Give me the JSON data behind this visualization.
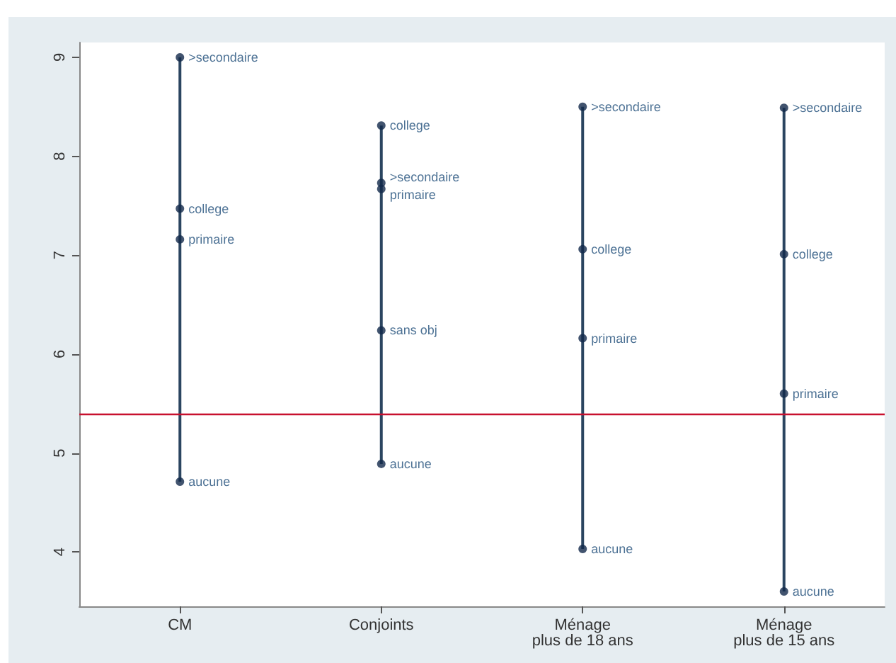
{
  "chart_data": {
    "type": "scatter",
    "categories": [
      "CM",
      "Conjoints",
      "Ménage\nplus de 18 ans",
      "Ménage\nplus de 15 ans"
    ],
    "series": [
      {
        "type": "bar",
        "color": "#2b4560",
        "base": [
          4.71,
          4.89,
          4.03,
          3.6
        ],
        "values": [
          4.29,
          3.42,
          4.47,
          4.89
        ]
      },
      {
        "name": ">secondaire",
        "color": "#13294b",
        "values": [
          9.0,
          7.73,
          8.5,
          8.49
        ]
      },
      {
        "name": "college",
        "color": "#13294b",
        "values": [
          7.47,
          8.31,
          7.06,
          7.01
        ]
      },
      {
        "name": "primaire",
        "color": "#13294b",
        "values": [
          7.16,
          7.67,
          6.16,
          5.6
        ]
      },
      {
        "name": "sans obj",
        "color": "#13294b",
        "values": [
          null,
          6.24,
          null,
          null
        ]
      },
      {
        "name": "aucune",
        "color": "#13294b",
        "values": [
          4.71,
          4.89,
          4.03,
          3.6
        ]
      }
    ],
    "ylim": [
      3.45,
      9.15
    ],
    "yticks": [
      4,
      5,
      6,
      7,
      8,
      9
    ],
    "ref_lines": [
      {
        "axis": "y",
        "value": 5.39,
        "color": "#c8102e"
      }
    ],
    "marker": "circle",
    "grid": false,
    "legend": false
  }
}
